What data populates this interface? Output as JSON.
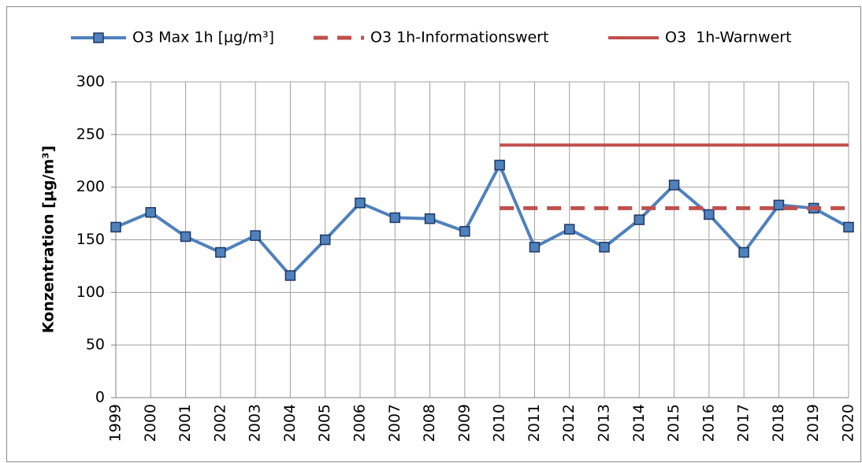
{
  "chart_data": {
    "type": "line",
    "y_label": "Konzentration [µg/m³]",
    "categories": [
      "1999",
      "2000",
      "2001",
      "2002",
      "2003",
      "2004",
      "2005",
      "2006",
      "2007",
      "2008",
      "2009",
      "2010",
      "2011",
      "2012",
      "2013",
      "2014",
      "2015",
      "2016",
      "2017",
      "2018",
      "2019",
      "2020"
    ],
    "series": [
      {
        "name": "O3 Max 1h [µg/m³]",
        "color": "#4f81bd",
        "marker": "square",
        "dashed": false,
        "values": [
          162,
          176,
          153,
          138,
          154,
          116,
          150,
          185,
          171,
          170,
          158,
          221,
          143,
          160,
          143,
          169,
          202,
          174,
          138,
          183,
          180,
          162
        ]
      },
      {
        "name": "O3 1h-Informationswert",
        "color": "#c0504d",
        "marker": null,
        "dashed": true,
        "values": [
          null,
          null,
          null,
          null,
          null,
          null,
          null,
          null,
          null,
          null,
          null,
          180,
          180,
          180,
          180,
          180,
          180,
          180,
          180,
          180,
          180,
          180
        ]
      },
      {
        "name": "O3  1h-Warnwert",
        "color": "#c0504d",
        "marker": null,
        "dashed": false,
        "values": [
          null,
          null,
          null,
          null,
          null,
          null,
          null,
          null,
          null,
          null,
          null,
          240,
          240,
          240,
          240,
          240,
          240,
          240,
          240,
          240,
          240,
          240
        ]
      }
    ],
    "ylim": [
      0,
      300
    ],
    "yticks": [
      0,
      50,
      100,
      150,
      200,
      250,
      300
    ],
    "grid": true,
    "legend": "top"
  }
}
